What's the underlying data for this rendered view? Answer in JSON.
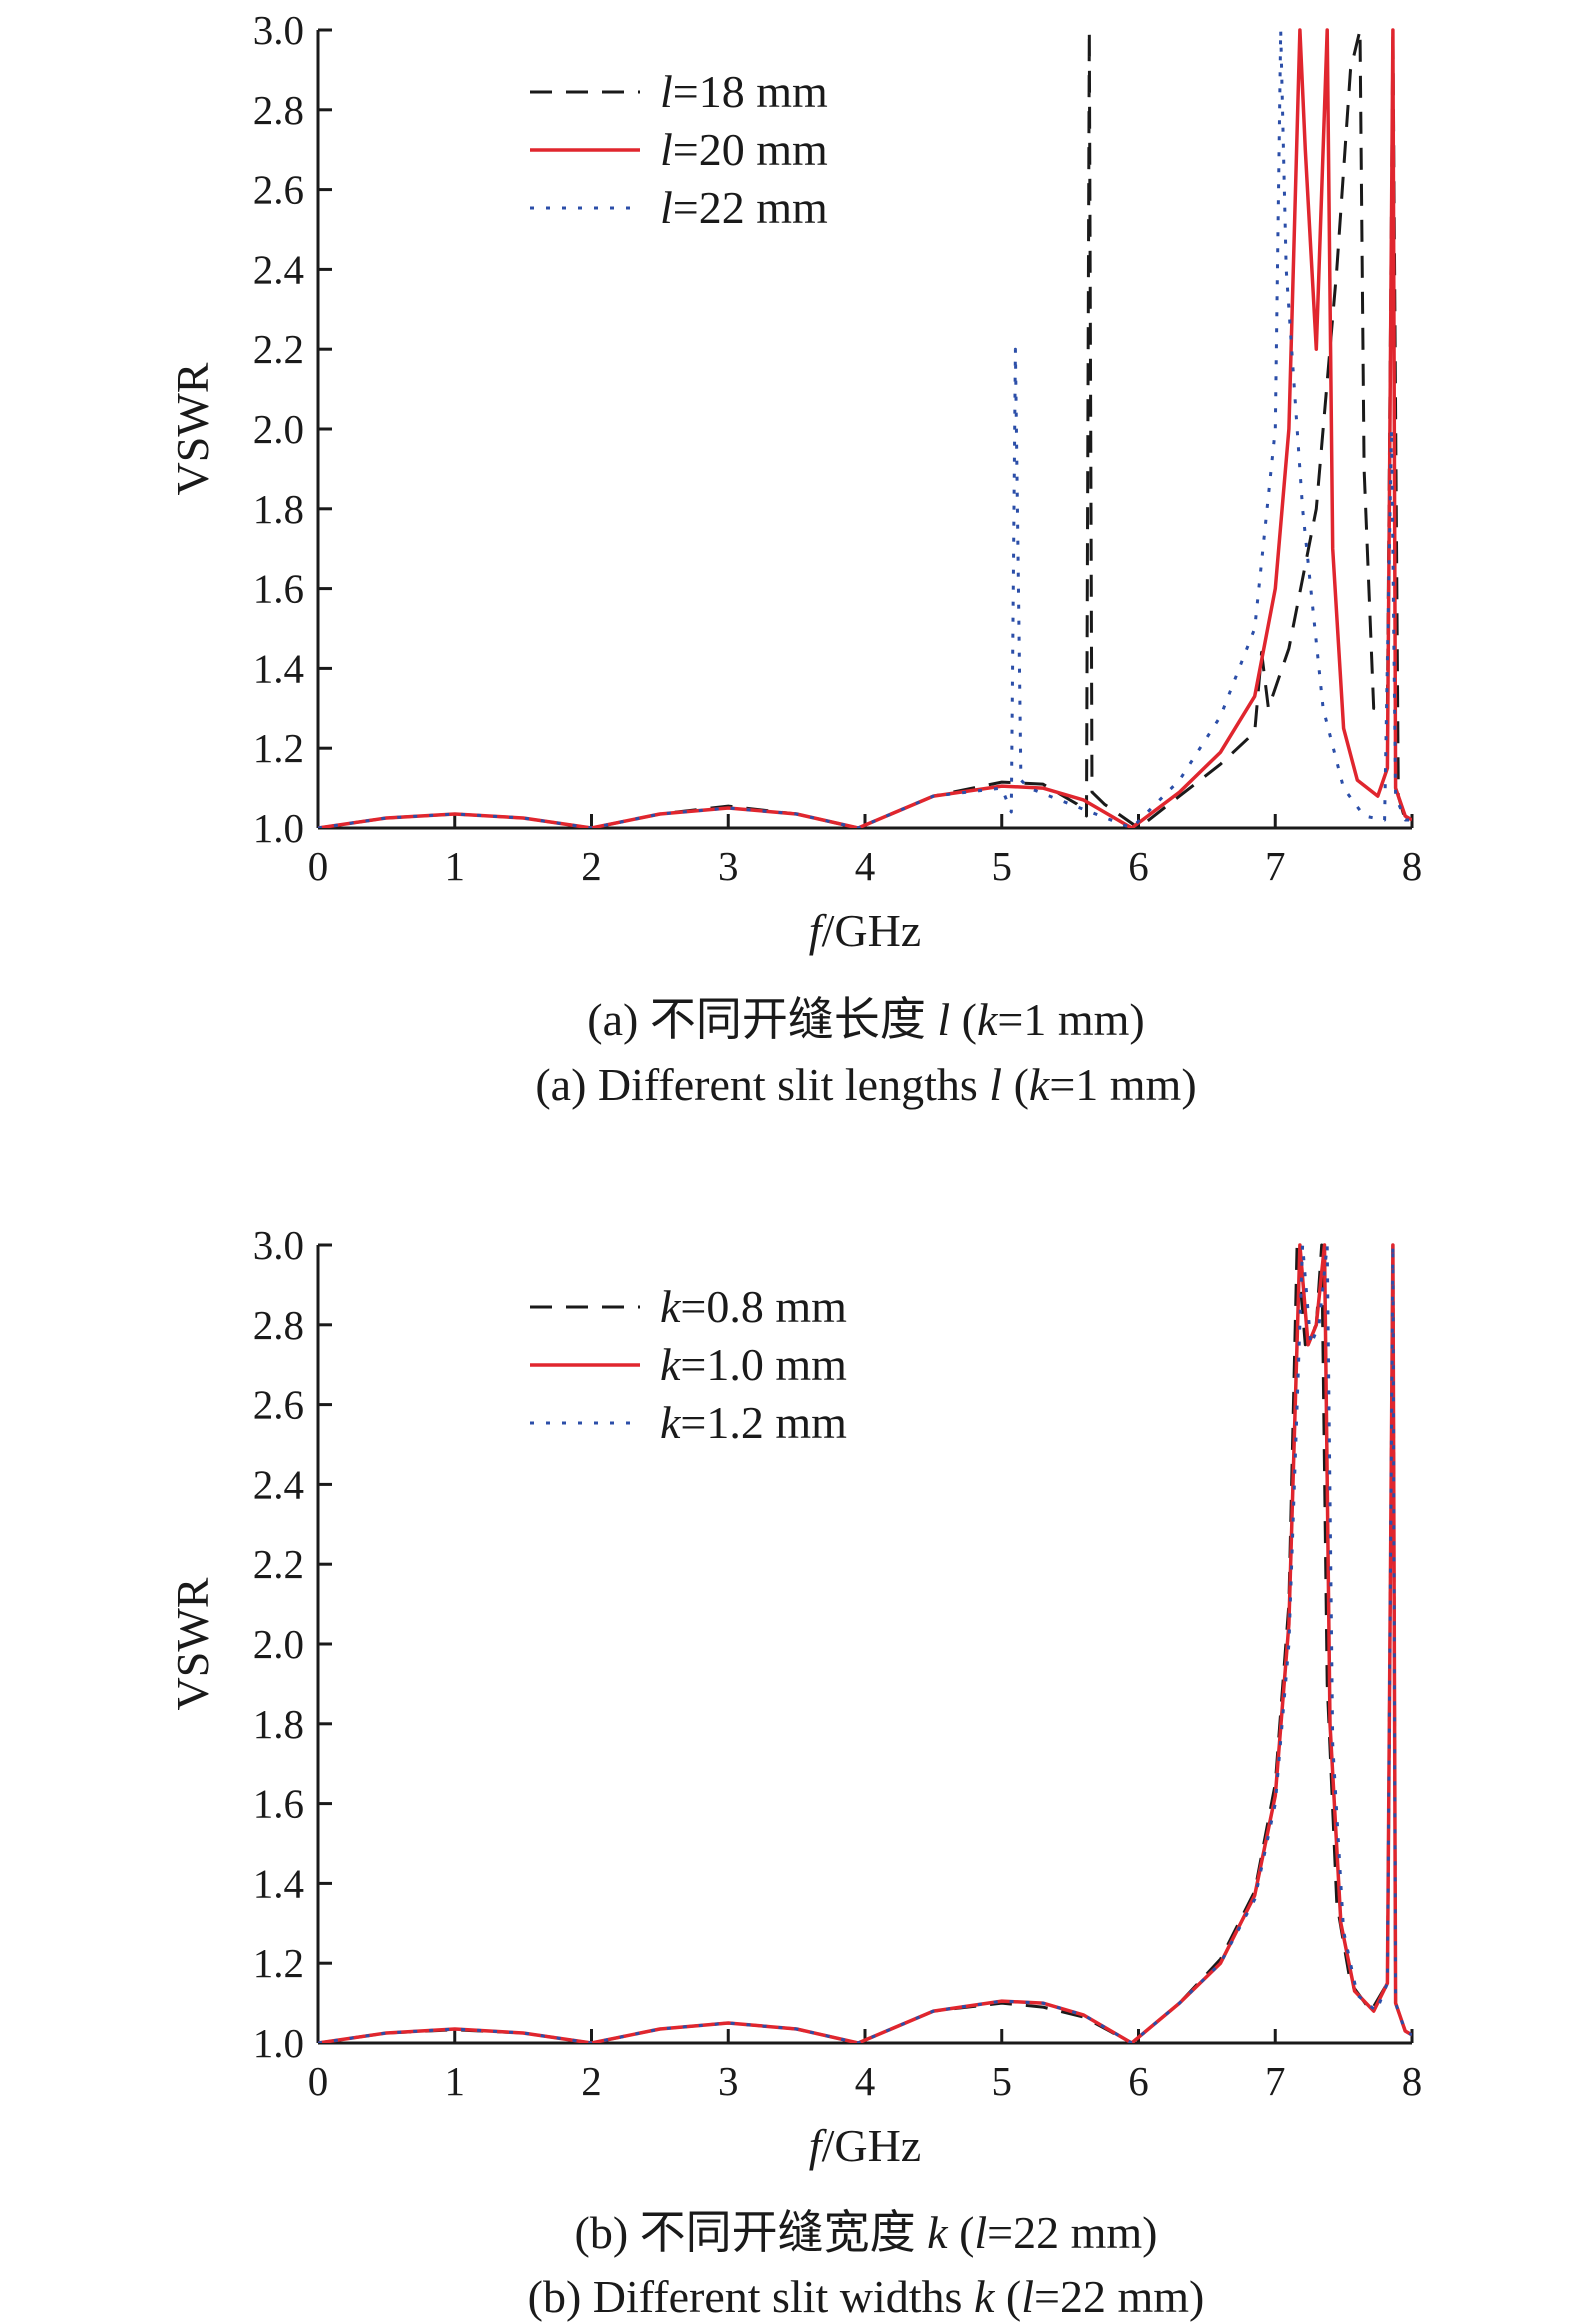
{
  "chart_data": [
    {
      "type": "line",
      "xlabel_var": "f",
      "xlabel_unit": "/GHz",
      "ylabel": "VSWR",
      "xlim": [
        0,
        8
      ],
      "ylim": [
        1.0,
        3.0
      ],
      "xticks": [
        "0",
        "1",
        "2",
        "3",
        "4",
        "5",
        "6",
        "7",
        "8"
      ],
      "yticks": [
        "1.0",
        "1.2",
        "1.4",
        "1.6",
        "1.8",
        "2.0",
        "2.2",
        "2.4",
        "2.6",
        "2.8",
        "3.0"
      ],
      "grid": false,
      "legend_position": "top-left",
      "caption_cn_prefix": "(a) 不同开缝长度 ",
      "caption_cn_var": "l",
      "caption_cn_mid": " (",
      "caption_cn_var2": "k",
      "caption_cn_suffix": "=1 mm)",
      "caption_en_prefix": "(a) Different slit lengths ",
      "caption_en_var": "l",
      "caption_en_mid": " (",
      "caption_en_var2": "k",
      "caption_en_suffix": "=1 mm)",
      "series": [
        {
          "name": "l=18 mm",
          "legend_var": "l",
          "legend_value": "=18 mm",
          "color": "#1a1a1a",
          "style": "dashed",
          "x": [
            0,
            0.5,
            1,
            1.5,
            2,
            2.5,
            3,
            3.5,
            3.95,
            4.5,
            5,
            5.3,
            5.55,
            5.62,
            5.64,
            5.66,
            5.75,
            6.0,
            6.3,
            6.6,
            6.85,
            6.9,
            6.95,
            7.1,
            7.3,
            7.45,
            7.55,
            7.62,
            7.65,
            7.72,
            7.82,
            7.86,
            7.9,
            7.95,
            8
          ],
          "y": [
            1.0,
            1.025,
            1.035,
            1.025,
            1.0,
            1.035,
            1.055,
            1.035,
            1.0,
            1.08,
            1.115,
            1.11,
            1.06,
            1.03,
            3.0,
            1.09,
            1.06,
            1.0,
            1.08,
            1.16,
            1.24,
            1.44,
            1.3,
            1.45,
            1.8,
            2.4,
            2.9,
            3.0,
            1.9,
            1.3,
            1.3,
            3.0,
            1.08,
            1.02,
            1.02
          ]
        },
        {
          "name": "l=20 mm",
          "legend_var": "l",
          "legend_value": "=20 mm",
          "color": "#e0262e",
          "style": "solid",
          "x": [
            0,
            0.5,
            1,
            1.5,
            2,
            2.5,
            3,
            3.5,
            3.95,
            4.5,
            5,
            5.3,
            5.6,
            5.95,
            6.3,
            6.6,
            6.85,
            7.0,
            7.1,
            7.18,
            7.22,
            7.3,
            7.38,
            7.42,
            7.5,
            7.6,
            7.75,
            7.82,
            7.86,
            7.88,
            7.95,
            8
          ],
          "y": [
            1.0,
            1.025,
            1.035,
            1.025,
            1.0,
            1.035,
            1.05,
            1.035,
            1.0,
            1.08,
            1.105,
            1.1,
            1.07,
            1.0,
            1.09,
            1.19,
            1.33,
            1.6,
            2.0,
            3.0,
            2.7,
            2.2,
            3.0,
            1.7,
            1.25,
            1.12,
            1.08,
            1.15,
            3.0,
            1.1,
            1.03,
            1.02
          ]
        },
        {
          "name": "l=22 mm",
          "legend_var": "l",
          "legend_value": "=22 mm",
          "color": "#2b4ea8",
          "style": "dotted",
          "x": [
            0,
            0.5,
            1,
            1.5,
            2,
            2.5,
            3,
            3.5,
            3.95,
            4.5,
            5.0,
            5.07,
            5.1,
            5.14,
            5.2,
            5.5,
            5.95,
            6.3,
            6.6,
            6.85,
            7.0,
            7.04,
            7.08,
            7.2,
            7.35,
            7.5,
            7.65,
            7.8,
            7.85,
            7.88,
            7.95,
            8
          ],
          "y": [
            1.0,
            1.025,
            1.035,
            1.025,
            1.0,
            1.035,
            1.05,
            1.035,
            1.0,
            1.08,
            1.1,
            1.04,
            2.2,
            1.12,
            1.1,
            1.06,
            1.0,
            1.12,
            1.28,
            1.5,
            2.0,
            3.0,
            2.4,
            1.8,
            1.3,
            1.1,
            1.03,
            1.02,
            2.0,
            1.08,
            1.02,
            1.02
          ]
        }
      ]
    },
    {
      "type": "line",
      "xlabel_var": "f",
      "xlabel_unit": "/GHz",
      "ylabel": "VSWR",
      "xlim": [
        0,
        8
      ],
      "ylim": [
        1.0,
        3.0
      ],
      "xticks": [
        "0",
        "1",
        "2",
        "3",
        "4",
        "5",
        "6",
        "7",
        "8"
      ],
      "yticks": [
        "1.0",
        "1.2",
        "1.4",
        "1.6",
        "1.8",
        "2.0",
        "2.2",
        "2.4",
        "2.6",
        "2.8",
        "3.0"
      ],
      "grid": false,
      "legend_position": "top-left",
      "caption_cn_prefix": "(b) 不同开缝宽度 ",
      "caption_cn_var": "k",
      "caption_cn_mid": " (",
      "caption_cn_var2": "l",
      "caption_cn_suffix": "=22 mm)",
      "caption_en_prefix": "(b) Different slit widths ",
      "caption_en_var": "k",
      "caption_en_mid": " (",
      "caption_en_var2": "l",
      "caption_en_suffix": "=22 mm)",
      "series": [
        {
          "name": "k=0.8 mm",
          "legend_var": "k",
          "legend_value": "=0.8 mm",
          "color": "#1a1a1a",
          "style": "dashed",
          "x": [
            0,
            0.5,
            1,
            1.5,
            2,
            2.5,
            3,
            3.5,
            3.95,
            4.5,
            5,
            5.3,
            5.6,
            5.95,
            6.3,
            6.6,
            6.85,
            7.0,
            7.1,
            7.16,
            7.22,
            7.3,
            7.34,
            7.38,
            7.45,
            7.55,
            7.7,
            7.82,
            7.86,
            7.88,
            7.95,
            8
          ],
          "y": [
            1.0,
            1.025,
            1.033,
            1.025,
            1.0,
            1.035,
            1.05,
            1.035,
            1.0,
            1.08,
            1.1,
            1.09,
            1.065,
            1.0,
            1.1,
            1.21,
            1.38,
            1.65,
            2.1,
            3.0,
            2.75,
            2.8,
            3.0,
            1.9,
            1.35,
            1.15,
            1.08,
            1.15,
            3.0,
            1.1,
            1.03,
            1.02
          ]
        },
        {
          "name": "k=1.0 mm",
          "legend_var": "k",
          "legend_value": "=1.0 mm",
          "color": "#e0262e",
          "style": "solid",
          "x": [
            0,
            0.5,
            1,
            1.5,
            2,
            2.5,
            3,
            3.5,
            3.95,
            4.5,
            5,
            5.3,
            5.6,
            5.95,
            6.3,
            6.6,
            6.85,
            7.0,
            7.1,
            7.18,
            7.24,
            7.3,
            7.36,
            7.4,
            7.48,
            7.58,
            7.72,
            7.82,
            7.86,
            7.88,
            7.95,
            8
          ],
          "y": [
            1.0,
            1.025,
            1.035,
            1.025,
            1.0,
            1.035,
            1.05,
            1.035,
            1.0,
            1.08,
            1.105,
            1.1,
            1.07,
            1.0,
            1.1,
            1.2,
            1.37,
            1.62,
            2.05,
            3.0,
            2.75,
            2.8,
            3.0,
            1.8,
            1.3,
            1.13,
            1.08,
            1.15,
            3.0,
            1.1,
            1.03,
            1.02
          ]
        },
        {
          "name": "k=1.2 mm",
          "legend_var": "k",
          "legend_value": "=1.2 mm",
          "color": "#2b4ea8",
          "style": "dotted",
          "x": [
            0,
            0.5,
            1,
            1.5,
            2,
            2.5,
            3,
            3.5,
            3.95,
            4.5,
            5,
            5.3,
            5.6,
            5.95,
            6.3,
            6.6,
            6.85,
            7.0,
            7.1,
            7.2,
            7.26,
            7.32,
            7.38,
            7.42,
            7.5,
            7.6,
            7.74,
            7.82,
            7.86,
            7.88,
            7.95,
            8
          ],
          "y": [
            1.0,
            1.025,
            1.035,
            1.025,
            1.0,
            1.035,
            1.05,
            1.035,
            1.0,
            1.08,
            1.105,
            1.1,
            1.07,
            1.0,
            1.1,
            1.2,
            1.36,
            1.6,
            2.0,
            3.0,
            2.75,
            2.8,
            3.0,
            1.75,
            1.28,
            1.12,
            1.08,
            1.15,
            3.0,
            1.1,
            1.03,
            1.02
          ]
        }
      ]
    }
  ]
}
